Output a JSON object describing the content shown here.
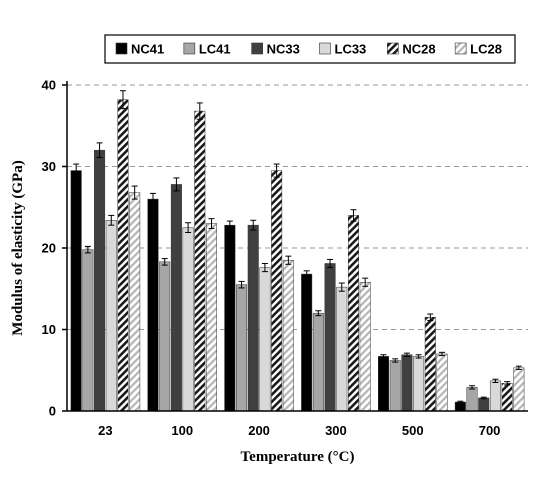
{
  "chart_data": {
    "type": "bar",
    "xlabel": "Temperature (°C)",
    "ylabel": "Modulus of elasticity (GPa)",
    "ylim": [
      0,
      40
    ],
    "yticks": [
      0,
      10,
      20,
      30,
      40
    ],
    "grid": "horizontal-dashed",
    "legend_position": "top",
    "categories": [
      "23",
      "100",
      "200",
      "300",
      "500",
      "700"
    ],
    "series": [
      {
        "name": "NC41",
        "values": [
          29.5,
          26.0,
          22.8,
          16.8,
          6.7,
          1.1
        ],
        "errors": [
          0.8,
          0.7,
          0.5,
          0.4,
          0.2,
          0.1
        ],
        "color": "#000000",
        "pattern": "solid"
      },
      {
        "name": "LC41",
        "values": [
          19.8,
          18.3,
          15.5,
          12.0,
          6.2,
          2.9
        ],
        "errors": [
          0.4,
          0.4,
          0.4,
          0.3,
          0.2,
          0.2
        ],
        "color": "#a6a6a6",
        "pattern": "solid"
      },
      {
        "name": "NC33",
        "values": [
          32.0,
          27.8,
          22.8,
          18.1,
          6.9,
          1.6
        ],
        "errors": [
          0.9,
          0.8,
          0.6,
          0.5,
          0.2,
          0.1
        ],
        "color": "#404040",
        "pattern": "solid"
      },
      {
        "name": "LC33",
        "values": [
          23.4,
          22.5,
          17.6,
          15.2,
          6.7,
          3.7
        ],
        "errors": [
          0.6,
          0.6,
          0.5,
          0.5,
          0.2,
          0.2
        ],
        "color": "#d9d9d9",
        "pattern": "solid"
      },
      {
        "name": "NC28",
        "values": [
          38.2,
          36.8,
          29.5,
          24.0,
          11.5,
          3.4
        ],
        "errors": [
          1.1,
          1.0,
          0.8,
          0.7,
          0.4,
          0.2
        ],
        "color": "#595959",
        "pattern": "hatch-dark"
      },
      {
        "name": "LC28",
        "values": [
          26.8,
          23.0,
          18.5,
          15.8,
          7.0,
          5.3
        ],
        "errors": [
          0.8,
          0.6,
          0.5,
          0.5,
          0.2,
          0.2
        ],
        "color": "#bfbfbf",
        "pattern": "hatch-light"
      }
    ]
  }
}
